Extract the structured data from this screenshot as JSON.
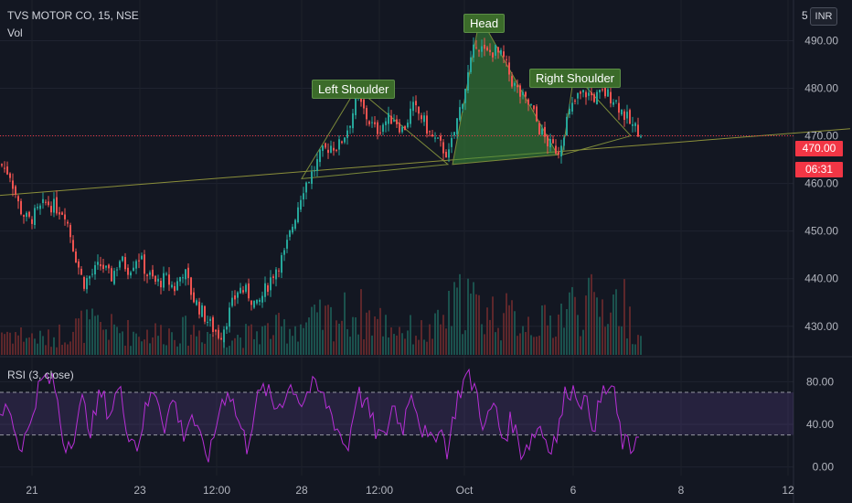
{
  "header": {
    "title": "TVS MOTOR CO, 15, NSE",
    "volume_label": "Vol",
    "rsi_label": "RSI (3, close)",
    "currency": "INR",
    "top_price_stub": "5"
  },
  "price_badge": {
    "price": "470.00",
    "countdown": "06:31"
  },
  "annotations": {
    "left_shoulder": "Left Shoulder",
    "head": "Head",
    "right_shoulder": "Right Shoulder"
  },
  "colors": {
    "up": "#26a69a",
    "down": "#ef5350",
    "rsi": "#b72fd6",
    "neckline": "#8b8f3a",
    "pattern_fill": "#3d8f3a",
    "current_price": "#f23645"
  },
  "chart_data": {
    "type": "candlestick",
    "price_axis": {
      "ticks": [
        430,
        440,
        450,
        460,
        470,
        480,
        490
      ],
      "range": [
        424,
        497
      ]
    },
    "rsi_axis": {
      "ticks": [
        0,
        40,
        80
      ],
      "range": [
        -8,
        100
      ],
      "bands": [
        30,
        70
      ]
    },
    "x_labels": [
      "21",
      "23",
      "12:00",
      "28",
      "12:00",
      "Oct",
      "6",
      "8",
      "12"
    ],
    "current_price": 470,
    "price_path": [
      [
        0,
        464
      ],
      [
        10,
        462
      ],
      [
        20,
        455
      ],
      [
        30,
        452
      ],
      [
        40,
        454
      ],
      [
        50,
        456
      ],
      [
        60,
        455
      ],
      [
        70,
        454
      ],
      [
        80,
        446
      ],
      [
        90,
        439
      ],
      [
        100,
        441
      ],
      [
        110,
        443
      ],
      [
        120,
        440
      ],
      [
        130,
        444
      ],
      [
        140,
        442
      ],
      [
        150,
        445
      ],
      [
        160,
        441
      ],
      [
        170,
        439
      ],
      [
        180,
        440
      ],
      [
        190,
        438
      ],
      [
        200,
        442
      ],
      [
        210,
        436
      ],
      [
        220,
        433
      ],
      [
        230,
        430
      ],
      [
        240,
        428
      ],
      [
        250,
        433
      ],
      [
        260,
        438
      ],
      [
        270,
        437
      ],
      [
        280,
        434
      ],
      [
        290,
        438
      ],
      [
        300,
        442
      ],
      [
        310,
        445
      ],
      [
        320,
        452
      ],
      [
        330,
        459
      ],
      [
        340,
        462
      ],
      [
        350,
        466
      ],
      [
        360,
        468
      ],
      [
        370,
        468
      ],
      [
        380,
        472
      ],
      [
        390,
        478
      ],
      [
        400,
        474
      ],
      [
        410,
        471
      ],
      [
        420,
        473
      ],
      [
        430,
        474
      ],
      [
        440,
        471
      ],
      [
        450,
        476
      ],
      [
        460,
        474
      ],
      [
        470,
        470
      ],
      [
        480,
        468
      ],
      [
        490,
        466
      ],
      [
        500,
        474
      ],
      [
        510,
        482
      ],
      [
        520,
        490
      ],
      [
        530,
        487
      ],
      [
        540,
        488
      ],
      [
        550,
        486
      ],
      [
        560,
        481
      ],
      [
        570,
        478
      ],
      [
        580,
        476
      ],
      [
        590,
        471
      ],
      [
        600,
        468
      ],
      [
        610,
        467
      ],
      [
        620,
        474
      ],
      [
        630,
        478
      ],
      [
        640,
        479
      ],
      [
        650,
        478
      ],
      [
        660,
        479
      ],
      [
        670,
        478
      ],
      [
        680,
        475
      ],
      [
        690,
        472
      ],
      [
        700,
        471
      ]
    ],
    "volume_profile": [
      [
        0,
        0.4
      ],
      [
        50,
        0.25
      ],
      [
        90,
        0.5
      ],
      [
        150,
        0.35
      ],
      [
        210,
        0.4
      ],
      [
        260,
        0.3
      ],
      [
        330,
        0.5
      ],
      [
        390,
        0.7
      ],
      [
        430,
        0.45
      ],
      [
        470,
        0.35
      ],
      [
        510,
        1.0
      ],
      [
        520,
        0.75
      ],
      [
        560,
        0.6
      ],
      [
        600,
        0.5
      ],
      [
        620,
        0.8
      ],
      [
        680,
        0.85
      ],
      [
        700,
        0.2
      ]
    ],
    "rsi_path": [
      [
        0,
        45
      ],
      [
        10,
        60
      ],
      [
        20,
        20
      ],
      [
        30,
        30
      ],
      [
        40,
        70
      ],
      [
        50,
        85
      ],
      [
        60,
        75
      ],
      [
        70,
        20
      ],
      [
        80,
        30
      ],
      [
        90,
        60
      ],
      [
        100,
        35
      ],
      [
        110,
        70
      ],
      [
        120,
        50
      ],
      [
        130,
        75
      ],
      [
        140,
        35
      ],
      [
        150,
        20
      ],
      [
        160,
        55
      ],
      [
        170,
        75
      ],
      [
        180,
        40
      ],
      [
        190,
        65
      ],
      [
        200,
        30
      ],
      [
        210,
        50
      ],
      [
        220,
        20
      ],
      [
        230,
        10
      ],
      [
        240,
        55
      ],
      [
        250,
        75
      ],
      [
        260,
        45
      ],
      [
        270,
        20
      ],
      [
        280,
        60
      ],
      [
        290,
        75
      ],
      [
        300,
        55
      ],
      [
        310,
        65
      ],
      [
        320,
        78
      ],
      [
        330,
        60
      ],
      [
        340,
        75
      ],
      [
        350,
        70
      ],
      [
        360,
        55
      ],
      [
        370,
        35
      ],
      [
        380,
        15
      ],
      [
        390,
        70
      ],
      [
        400,
        60
      ],
      [
        410,
        35
      ],
      [
        420,
        25
      ],
      [
        430,
        60
      ],
      [
        440,
        35
      ],
      [
        450,
        75
      ],
      [
        460,
        40
      ],
      [
        470,
        20
      ],
      [
        480,
        40
      ],
      [
        490,
        15
      ],
      [
        500,
        65
      ],
      [
        510,
        85
      ],
      [
        520,
        75
      ],
      [
        530,
        35
      ],
      [
        540,
        60
      ],
      [
        550,
        25
      ],
      [
        560,
        45
      ],
      [
        570,
        15
      ],
      [
        580,
        25
      ],
      [
        590,
        40
      ],
      [
        600,
        20
      ],
      [
        610,
        30
      ],
      [
        620,
        75
      ],
      [
        630,
        70
      ],
      [
        640,
        60
      ],
      [
        650,
        40
      ],
      [
        660,
        70
      ],
      [
        670,
        75
      ],
      [
        680,
        25
      ],
      [
        690,
        15
      ],
      [
        700,
        40
      ]
    ],
    "neckline": [
      [
        0,
        457.5
      ],
      [
        930,
        471.5
      ]
    ],
    "pattern_points": {
      "left_shoulder": [
        [
          330,
          461
        ],
        [
          390,
          480
        ],
        [
          490,
          464
        ]
      ],
      "head": [
        [
          495,
          464
        ],
        [
          525,
          495
        ],
        [
          610,
          466
        ]
      ],
      "right_shoulder": [
        [
          615,
          466
        ],
        [
          628,
          483
        ],
        [
          690,
          470
        ]
      ]
    }
  }
}
